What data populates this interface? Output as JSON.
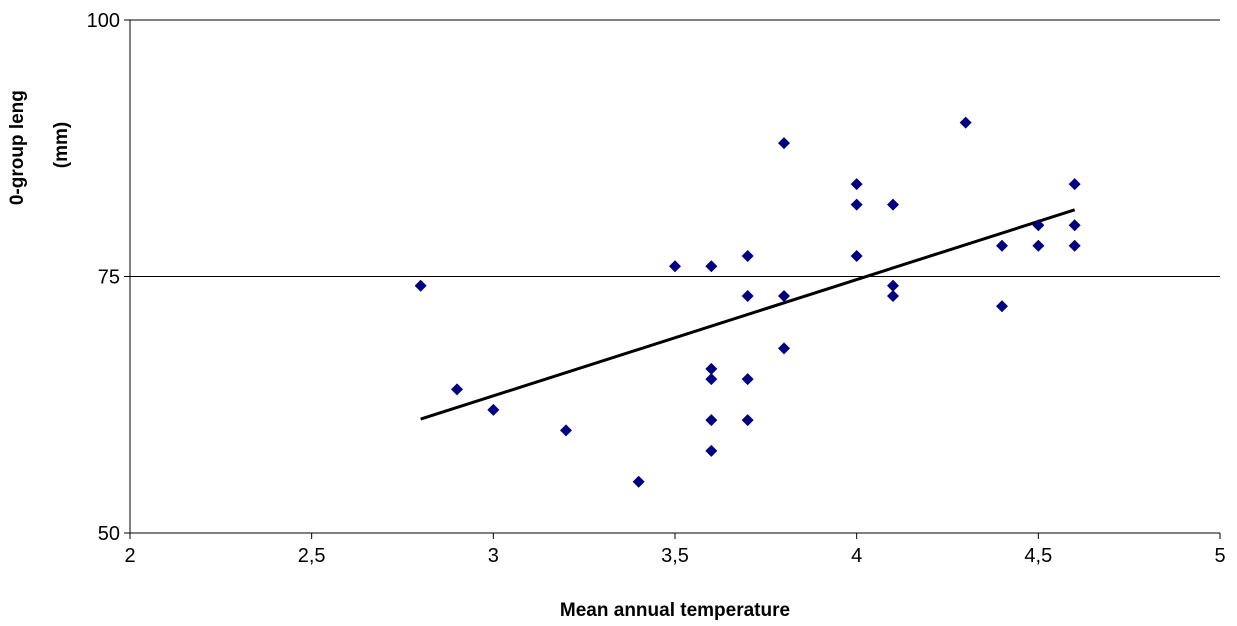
{
  "chart_data": {
    "type": "scatter",
    "title": "",
    "xlabel": "Mean annual temperature",
    "ylabel_lines": [
      "0-group leng",
      "(mm)"
    ],
    "xlim": [
      2,
      5
    ],
    "ylim": [
      50,
      100
    ],
    "x_ticks": [
      2,
      2.5,
      3,
      3.5,
      4,
      4.5,
      5
    ],
    "x_tick_labels": [
      "2",
      "2,5",
      "3",
      "3,5",
      "4",
      "4,5",
      "5"
    ],
    "y_ticks": [
      50,
      75,
      100
    ],
    "y_tick_labels": [
      "50",
      "75",
      "100"
    ],
    "grid": "horizontal",
    "legend": "none",
    "colors": {
      "marker": "#000080",
      "trendline": "#000000",
      "gridline": "#000000"
    },
    "marker": "diamond",
    "series": [
      {
        "points": [
          [
            2.8,
            74.1
          ],
          [
            2.9,
            64.0
          ],
          [
            3.0,
            62.0
          ],
          [
            3.2,
            60.0
          ],
          [
            3.4,
            55.0
          ],
          [
            3.5,
            76.0
          ],
          [
            3.6,
            76.0
          ],
          [
            3.6,
            66.0
          ],
          [
            3.6,
            65.0
          ],
          [
            3.6,
            61.0
          ],
          [
            3.6,
            58.0
          ],
          [
            3.7,
            77.0
          ],
          [
            3.7,
            73.1
          ],
          [
            3.7,
            65.0
          ],
          [
            3.7,
            61.0
          ],
          [
            3.8,
            88.0
          ],
          [
            3.8,
            73.1
          ],
          [
            3.8,
            68.0
          ],
          [
            4.0,
            84.0
          ],
          [
            4.0,
            82.0
          ],
          [
            4.0,
            77.0
          ],
          [
            4.1,
            82.0
          ],
          [
            4.1,
            74.1
          ],
          [
            4.1,
            73.1
          ],
          [
            4.3,
            90.0
          ],
          [
            4.4,
            78.0
          ],
          [
            4.4,
            72.1
          ],
          [
            4.5,
            80.0
          ],
          [
            4.5,
            78.0
          ],
          [
            4.6,
            84.0
          ],
          [
            4.6,
            80.0
          ],
          [
            4.6,
            78.0
          ]
        ]
      }
    ],
    "trendline": {
      "type": "linear",
      "x": [
        2.8,
        4.6
      ],
      "y": [
        61.1,
        81.5
      ]
    }
  }
}
